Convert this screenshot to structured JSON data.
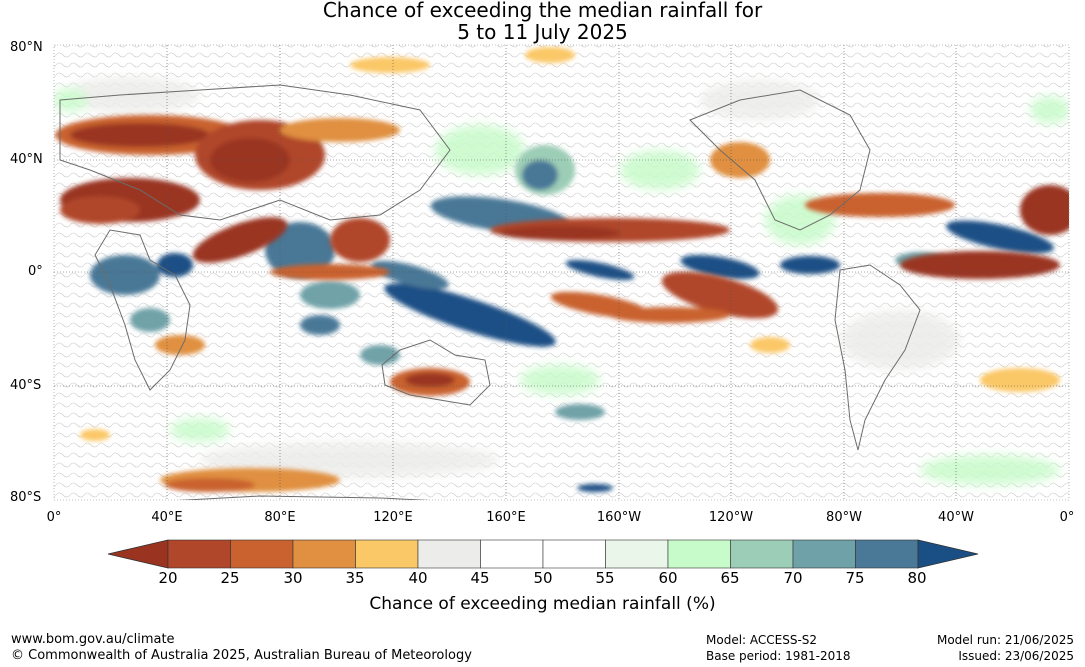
{
  "title": {
    "line1": "Chance of exceeding the median rainfall for",
    "line2": "5 to 11 July 2025"
  },
  "latitude_labels": [
    "80°N",
    "40°N",
    "0°",
    "40°S",
    "80°S"
  ],
  "longitude_labels": [
    "0°",
    "40°E",
    "80°E",
    "120°E",
    "160°E",
    "160°W",
    "120°W",
    "80°W",
    "40°W",
    "0°"
  ],
  "colorbar": {
    "ticks": [
      "20",
      "25",
      "30",
      "35",
      "40",
      "45",
      "50",
      "55",
      "60",
      "65",
      "70",
      "75",
      "80"
    ],
    "colors": [
      "#9a3420",
      "#b0472a",
      "#c9622f",
      "#e09040",
      "#fbc868",
      "#ececea",
      "#ffffff",
      "#ffffff",
      "#eaf6ea",
      "#c8fbca",
      "#9ccdb6",
      "#6fa2a8",
      "#4a7897",
      "#1a4f85"
    ],
    "label": "Chance of exceeding median rainfall (%)"
  },
  "footer": {
    "website": "www.bom.gov.au/climate",
    "copyright": "© Commonwealth of Australia 2025, Australian Bureau of Meteorology",
    "model": "Model: ACCESS-S2",
    "base_period": "Base period: 1981-2018",
    "model_run": "Model run: 21/06/2025",
    "issued": "Issued: 23/06/2025"
  }
}
